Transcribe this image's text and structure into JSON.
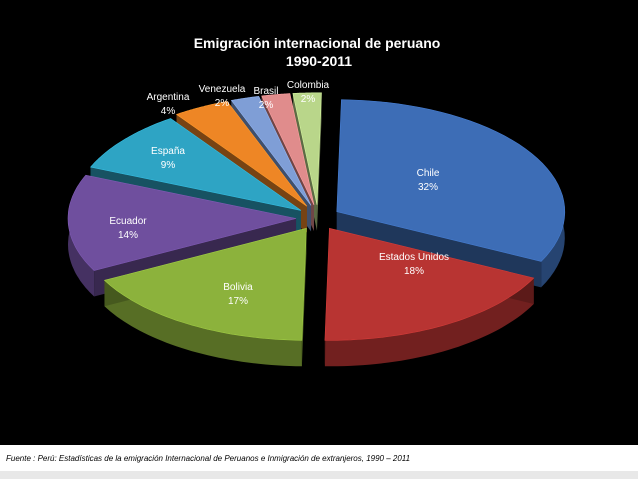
{
  "chart_data": {
    "type": "pie",
    "title": "Emigración internacional de peruano",
    "subtitle": "1990-2011",
    "categories": [
      "Chile",
      "Estados Unidos",
      "Bolivia",
      "Ecuador",
      "España",
      "Argentina",
      "Venezuela",
      "Brasil",
      "Colombia"
    ],
    "values": [
      32,
      18,
      17,
      14,
      9,
      4,
      2,
      2,
      2
    ],
    "value_labels": [
      "32%",
      "18%",
      "17%",
      "14%",
      "9%",
      "4%",
      "2%",
      "2%",
      "2%"
    ],
    "colors": [
      "#3d6db6",
      "#b83432",
      "#8cb23c",
      "#6f4f9e",
      "#2ea4c4",
      "#ee8625",
      "#7f9ed6",
      "#e08c8c",
      "#b9d68a"
    ],
    "style": "3d-exploded",
    "legend": "none",
    "background": "#000000"
  },
  "footer": {
    "source": "Fuente : Perú:  Estadísticas de la emigración Internacional de Peruanos e Inmigración de extranjeros, 1990 – 2011"
  }
}
